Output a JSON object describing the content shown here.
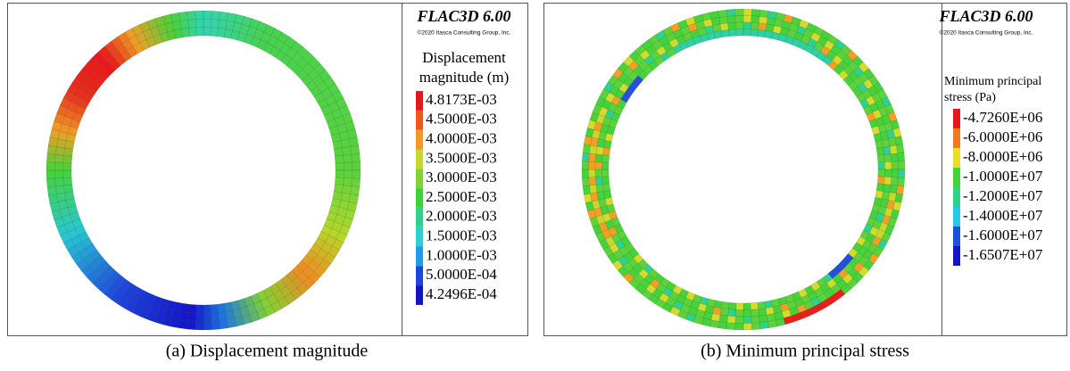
{
  "panels": [
    {
      "header": {
        "title": "FLAC3D 6.00",
        "copyright": "©2020 Itasca Consulting Group, Inc."
      },
      "legend": {
        "title": [
          "Displacement",
          "magnitude (m)"
        ],
        "entries": [
          {
            "label": "4.8173E-03",
            "color": "#e8161c"
          },
          {
            "label": "4.5000E-03",
            "color": "#f0561a"
          },
          {
            "label": "4.0000E-03",
            "color": "#f29a24"
          },
          {
            "label": "3.5000E-03",
            "color": "#c9d82a"
          },
          {
            "label": "3.0000E-03",
            "color": "#7ed432"
          },
          {
            "label": "2.5000E-03",
            "color": "#3cd03c"
          },
          {
            "label": "2.0000E-03",
            "color": "#2ed28a"
          },
          {
            "label": "1.5000E-03",
            "color": "#28d2d2"
          },
          {
            "label": "1.0000E-03",
            "color": "#1e9ce6"
          },
          {
            "label": "5.0000E-04",
            "color": "#1e46dc"
          },
          {
            "label": "4.2496E-04",
            "color": "#1414c8"
          }
        ]
      },
      "caption": "(a) Displacement magnitude"
    },
    {
      "header": {
        "title": "FLAC3D 6.00",
        "copyright": "©2020 Itasca Consulting Group, Inc."
      },
      "legend": {
        "title": [
          "Minimum principal",
          "stress (Pa)"
        ],
        "entries": [
          {
            "label": "-4.7260E+06",
            "color": "#e8161c"
          },
          {
            "label": "-6.0000E+06",
            "color": "#f07a1e"
          },
          {
            "label": "-8.0000E+06",
            "color": "#e6e02a"
          },
          {
            "label": "-1.0000E+07",
            "color": "#46d23a"
          },
          {
            "label": "-1.2000E+07",
            "color": "#2ed28c"
          },
          {
            "label": "-1.4000E+07",
            "color": "#28c8e6"
          },
          {
            "label": "-1.6000E+07",
            "color": "#1e50dc"
          },
          {
            "label": "-1.6507E+07",
            "color": "#1414c8"
          }
        ]
      },
      "caption": "(b) Minimum principal stress"
    }
  ]
}
